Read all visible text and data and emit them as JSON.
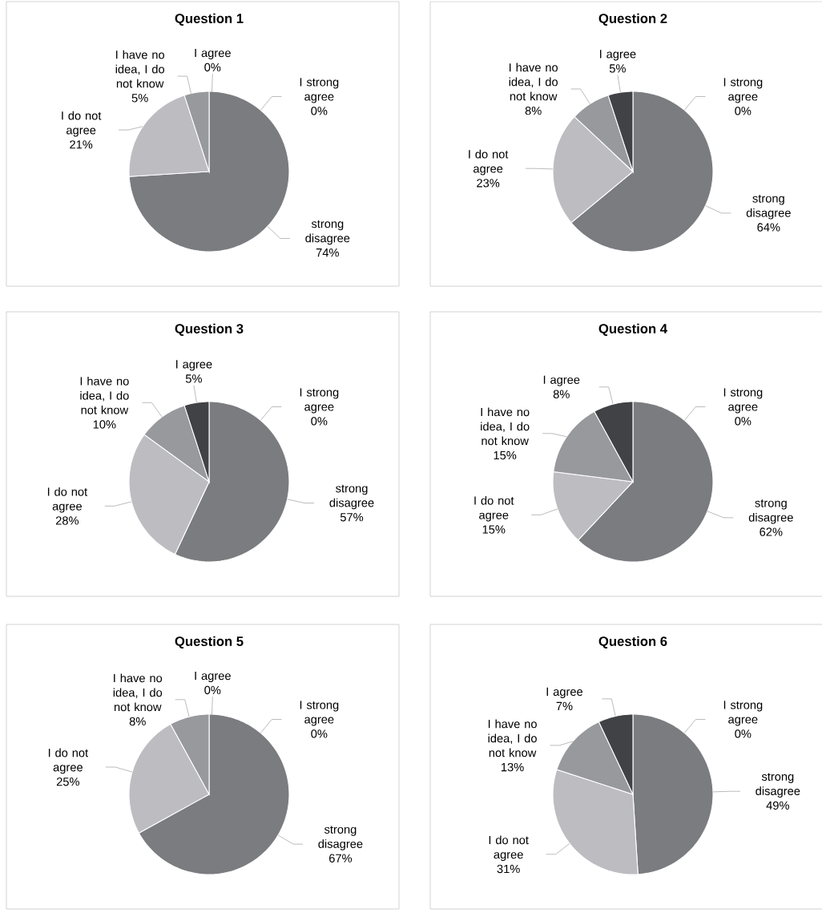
{
  "chart_data": [
    {
      "type": "pie",
      "title": "Question 1",
      "categories": [
        "strong disagree",
        "I do not agree",
        "I have no idea, I do not know",
        "I agree",
        "I strong agree"
      ],
      "values": [
        74,
        21,
        5,
        0,
        0
      ],
      "value_labels": [
        "74%",
        "21%",
        "5%",
        "0%",
        "0%"
      ],
      "colors": [
        "#7b7c80",
        "#bdbdc1",
        "#98999d",
        "#404245",
        "#e0e0e0"
      ]
    },
    {
      "type": "pie",
      "title": "Question 2",
      "categories": [
        "strong disagree",
        "I do not agree",
        "I have no idea, I do not know",
        "I agree",
        "I strong agree"
      ],
      "values": [
        64,
        23,
        8,
        5,
        0
      ],
      "value_labels": [
        "64%",
        "23%",
        "8%",
        "5%",
        "0%"
      ],
      "colors": [
        "#7b7c80",
        "#bdbdc1",
        "#98999d",
        "#404245",
        "#e0e0e0"
      ]
    },
    {
      "type": "pie",
      "title": "Question 3",
      "categories": [
        "strong disagree",
        "I do not agree",
        "I have no idea, I do not know",
        "I agree",
        "I strong agree"
      ],
      "values": [
        57,
        28,
        10,
        5,
        0
      ],
      "value_labels": [
        "57%",
        "28%",
        "10%",
        "5%",
        "0%"
      ],
      "colors": [
        "#7b7c80",
        "#bdbdc1",
        "#98999d",
        "#404245",
        "#e0e0e0"
      ]
    },
    {
      "type": "pie",
      "title": "Question 4",
      "categories": [
        "strong disagree",
        "I do not agree",
        "I have no idea, I do not know",
        "I agree",
        "I strong agree"
      ],
      "values": [
        62,
        15,
        15,
        8,
        0
      ],
      "value_labels": [
        "62%",
        "15%",
        "15%",
        "8%",
        "0%"
      ],
      "colors": [
        "#7b7c80",
        "#bdbdc1",
        "#98999d",
        "#404245",
        "#e0e0e0"
      ]
    },
    {
      "type": "pie",
      "title": "Question 5",
      "categories": [
        "strong disagree",
        "I do not agree",
        "I have no idea, I do not know",
        "I agree",
        "I strong agree"
      ],
      "values": [
        67,
        25,
        8,
        0,
        0
      ],
      "value_labels": [
        "67%",
        "25%",
        "8%",
        "0%",
        "0%"
      ],
      "colors": [
        "#7b7c80",
        "#bdbdc1",
        "#98999d",
        "#404245",
        "#e0e0e0"
      ]
    },
    {
      "type": "pie",
      "title": "Question 6",
      "categories": [
        "strong disagree",
        "I do not agree",
        "I have no idea, I do not know",
        "I agree",
        "I strong agree"
      ],
      "values": [
        49,
        31,
        13,
        7,
        0
      ],
      "value_labels": [
        "49%",
        "31%",
        "13%",
        "7%",
        "0%"
      ],
      "colors": [
        "#7b7c80",
        "#bdbdc1",
        "#98999d",
        "#404245",
        "#e0e0e0"
      ]
    }
  ]
}
